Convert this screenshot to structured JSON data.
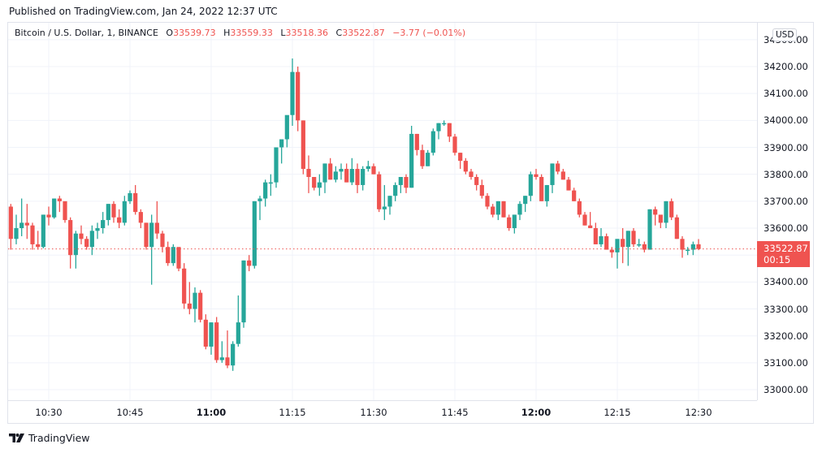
{
  "header": {
    "published": "Published on TradingView.com, Jan 24, 2022 12:37 UTC"
  },
  "legend": {
    "symbol": "Bitcoin / U.S. Dollar, 1, BINANCE",
    "o_key": "O",
    "o_val": "33539.73",
    "h_key": "H",
    "h_val": "33559.33",
    "l_key": "L",
    "l_val": "33518.36",
    "c_key": "C",
    "c_val": "33522.87",
    "change": "−3.77 (−0.01%)"
  },
  "price_axis": {
    "currency": "USD",
    "ticks": [
      "34300.00",
      "34200.00",
      "34100.00",
      "34000.00",
      "33900.00",
      "33800.00",
      "33700.00",
      "33600.00",
      "33500.00",
      "33400.00",
      "33300.00",
      "33200.00",
      "33100.00",
      "33000.00"
    ],
    "last_price": "33522.87",
    "countdown": "00:15"
  },
  "time_axis": {
    "ticks": [
      {
        "label": "10:30",
        "bold": false
      },
      {
        "label": "10:45",
        "bold": false
      },
      {
        "label": "11:00",
        "bold": true
      },
      {
        "label": "11:15",
        "bold": false
      },
      {
        "label": "11:30",
        "bold": false
      },
      {
        "label": "11:45",
        "bold": false
      },
      {
        "label": "12:00",
        "bold": true
      },
      {
        "label": "12:15",
        "bold": false
      },
      {
        "label": "12:30",
        "bold": false
      }
    ]
  },
  "colors": {
    "up": "#26a69a",
    "down": "#ef5350",
    "grid": "#f0f3fa",
    "border": "#e0e3eb"
  },
  "brand": {
    "name": "TradingView"
  },
  "chart_data": {
    "type": "candlestick",
    "title": "Bitcoin / U.S. Dollar, 1, BINANCE",
    "interval": "1m",
    "xlabel": "Time (UTC)",
    "ylabel": "USD",
    "ylim": [
      32950,
      34310
    ],
    "grid": true,
    "last_price": 33522.87,
    "x_ticks": [
      "10:30",
      "10:45",
      "11:00",
      "11:15",
      "11:30",
      "11:45",
      "12:00",
      "12:15",
      "12:30"
    ],
    "y_ticks": [
      33000,
      33100,
      33200,
      33300,
      33400,
      33500,
      33600,
      33700,
      33800,
      33900,
      34000,
      34100,
      34200,
      34300
    ],
    "candles": [
      [
        "10:22",
        33580,
        33730,
        33530,
        33680
      ],
      [
        "10:23",
        33680,
        33690,
        33520,
        33560
      ],
      [
        "10:24",
        33560,
        33650,
        33540,
        33600
      ],
      [
        "10:25",
        33600,
        33710,
        33570,
        33620
      ],
      [
        "10:26",
        33620,
        33690,
        33560,
        33610
      ],
      [
        "10:27",
        33610,
        33620,
        33520,
        33540
      ],
      [
        "10:28",
        33540,
        33590,
        33520,
        33530
      ],
      [
        "10:29",
        33530,
        33650,
        33525,
        33650
      ],
      [
        "10:30",
        33650,
        33680,
        33610,
        33640
      ],
      [
        "10:31",
        33640,
        33710,
        33635,
        33710
      ],
      [
        "10:32",
        33710,
        33720,
        33660,
        33700
      ],
      [
        "10:33",
        33700,
        33670,
        33620,
        33630
      ],
      [
        "10:34",
        33630,
        33640,
        33450,
        33500
      ],
      [
        "10:35",
        33500,
        33590,
        33450,
        33580
      ],
      [
        "10:36",
        33580,
        33610,
        33540,
        33560
      ],
      [
        "10:37",
        33560,
        33570,
        33520,
        33530
      ],
      [
        "10:38",
        33530,
        33610,
        33500,
        33590
      ],
      [
        "10:39",
        33590,
        33620,
        33560,
        33600
      ],
      [
        "10:40",
        33600,
        33660,
        33580,
        33630
      ],
      [
        "10:41",
        33630,
        33690,
        33610,
        33690
      ],
      [
        "10:42",
        33690,
        33700,
        33620,
        33640
      ],
      [
        "10:43",
        33640,
        33670,
        33600,
        33620
      ],
      [
        "10:44",
        33620,
        33720,
        33610,
        33700
      ],
      [
        "10:45",
        33700,
        33740,
        33690,
        33730
      ],
      [
        "10:46",
        33730,
        33760,
        33650,
        33660
      ],
      [
        "10:47",
        33660,
        33670,
        33600,
        33620
      ],
      [
        "10:48",
        33620,
        33620,
        33520,
        33530
      ],
      [
        "10:49",
        33530,
        33650,
        33390,
        33620
      ],
      [
        "10:50",
        33620,
        33700,
        33560,
        33580
      ],
      [
        "10:51",
        33580,
        33590,
        33510,
        33530
      ],
      [
        "10:52",
        33530,
        33550,
        33460,
        33470
      ],
      [
        "10:53",
        33470,
        33540,
        33460,
        33530
      ],
      [
        "10:54",
        33530,
        33520,
        33440,
        33450
      ],
      [
        "10:55",
        33450,
        33470,
        33300,
        33320
      ],
      [
        "10:56",
        33320,
        33400,
        33280,
        33300
      ],
      [
        "10:57",
        33300,
        33380,
        33250,
        33360
      ],
      [
        "10:58",
        33360,
        33370,
        33250,
        33260
      ],
      [
        "10:59",
        33260,
        33280,
        33150,
        33160
      ],
      [
        "11:00",
        33160,
        33250,
        33130,
        33250
      ],
      [
        "11:01",
        33250,
        33270,
        33100,
        33110
      ],
      [
        "11:02",
        33110,
        33180,
        33100,
        33120
      ],
      [
        "11:03",
        33120,
        33220,
        33080,
        33090
      ],
      [
        "11:04",
        33090,
        33180,
        33070,
        33170
      ],
      [
        "11:05",
        33170,
        33350,
        33160,
        33250
      ],
      [
        "11:06",
        33250,
        33480,
        33230,
        33480
      ],
      [
        "11:07",
        33480,
        33500,
        33440,
        33460
      ],
      [
        "11:08",
        33460,
        33700,
        33450,
        33700
      ],
      [
        "11:09",
        33700,
        33720,
        33630,
        33710
      ],
      [
        "11:10",
        33710,
        33780,
        33680,
        33770
      ],
      [
        "11:11",
        33770,
        33800,
        33720,
        33770
      ],
      [
        "11:12",
        33770,
        33880,
        33750,
        33900
      ],
      [
        "11:13",
        33900,
        33920,
        33840,
        33930
      ],
      [
        "11:14",
        33930,
        34000,
        33900,
        34020
      ],
      [
        "11:15",
        34020,
        34230,
        33980,
        34180
      ],
      [
        "11:16",
        34180,
        34200,
        33960,
        34000
      ],
      [
        "11:17",
        34000,
        34000,
        33800,
        33820
      ],
      [
        "11:18",
        33820,
        33870,
        33730,
        33790
      ],
      [
        "11:19",
        33790,
        33780,
        33740,
        33750
      ],
      [
        "11:20",
        33750,
        33800,
        33720,
        33770
      ],
      [
        "11:21",
        33770,
        33840,
        33730,
        33840
      ],
      [
        "11:22",
        33840,
        33860,
        33780,
        33780
      ],
      [
        "11:23",
        33780,
        33830,
        33770,
        33810
      ],
      [
        "11:24",
        33810,
        33840,
        33780,
        33820
      ],
      [
        "11:25",
        33820,
        33840,
        33770,
        33770
      ],
      [
        "11:26",
        33770,
        33860,
        33760,
        33820
      ],
      [
        "11:27",
        33820,
        33840,
        33730,
        33760
      ],
      [
        "11:28",
        33760,
        33830,
        33740,
        33820
      ],
      [
        "11:29",
        33820,
        33850,
        33810,
        33830
      ],
      [
        "11:30",
        33830,
        33840,
        33800,
        33800
      ],
      [
        "11:31",
        33800,
        33810,
        33660,
        33670
      ],
      [
        "11:32",
        33670,
        33760,
        33630,
        33680
      ],
      [
        "11:33",
        33680,
        33720,
        33650,
        33720
      ],
      [
        "11:34",
        33720,
        33770,
        33700,
        33760
      ],
      [
        "11:35",
        33760,
        33790,
        33730,
        33790
      ],
      [
        "11:36",
        33790,
        33800,
        33730,
        33750
      ],
      [
        "11:37",
        33750,
        33980,
        33750,
        33950
      ],
      [
        "11:38",
        33950,
        33950,
        33870,
        33890
      ],
      [
        "11:39",
        33890,
        33910,
        33820,
        33830
      ],
      [
        "11:40",
        33830,
        33890,
        33830,
        33880
      ],
      [
        "11:41",
        33880,
        33970,
        33870,
        33960
      ],
      [
        "11:42",
        33960,
        33990,
        33930,
        33990
      ],
      [
        "11:43",
        33990,
        34000,
        33980,
        33990
      ],
      [
        "11:44",
        33990,
        33990,
        33920,
        33940
      ],
      [
        "11:45",
        33940,
        33950,
        33870,
        33880
      ],
      [
        "11:46",
        33880,
        33880,
        33820,
        33850
      ],
      [
        "11:47",
        33850,
        33860,
        33800,
        33810
      ],
      [
        "11:48",
        33810,
        33820,
        33780,
        33790
      ],
      [
        "11:49",
        33790,
        33800,
        33740,
        33760
      ],
      [
        "11:50",
        33760,
        33780,
        33710,
        33720
      ],
      [
        "11:51",
        33720,
        33730,
        33670,
        33680
      ],
      [
        "11:52",
        33680,
        33690,
        33640,
        33650
      ],
      [
        "11:53",
        33650,
        33700,
        33630,
        33700
      ],
      [
        "11:54",
        33700,
        33700,
        33640,
        33640
      ],
      [
        "11:55",
        33640,
        33650,
        33590,
        33600
      ],
      [
        "11:56",
        33600,
        33650,
        33580,
        33650
      ],
      [
        "11:57",
        33650,
        33700,
        33630,
        33690
      ],
      [
        "11:58",
        33690,
        33720,
        33660,
        33720
      ],
      [
        "11:59",
        33720,
        33810,
        33700,
        33800
      ],
      [
        "12:00",
        33800,
        33820,
        33780,
        33790
      ],
      [
        "12:01",
        33790,
        33800,
        33700,
        33700
      ],
      [
        "12:02",
        33700,
        33760,
        33680,
        33760
      ],
      [
        "12:03",
        33760,
        33840,
        33730,
        33840
      ],
      [
        "12:04",
        33840,
        33850,
        33800,
        33810
      ],
      [
        "12:05",
        33810,
        33820,
        33780,
        33780
      ],
      [
        "12:06",
        33780,
        33790,
        33740,
        33740
      ],
      [
        "12:07",
        33740,
        33750,
        33700,
        33700
      ],
      [
        "12:08",
        33700,
        33710,
        33640,
        33650
      ],
      [
        "12:09",
        33650,
        33660,
        33610,
        33610
      ],
      [
        "12:10",
        33610,
        33660,
        33600,
        33600
      ],
      [
        "12:11",
        33600,
        33620,
        33540,
        33540
      ],
      [
        "12:12",
        33540,
        33600,
        33530,
        33570
      ],
      [
        "12:13",
        33570,
        33580,
        33520,
        33520
      ],
      [
        "12:14",
        33520,
        33530,
        33490,
        33510
      ],
      [
        "12:15",
        33510,
        33550,
        33450,
        33560
      ],
      [
        "12:16",
        33560,
        33600,
        33470,
        33530
      ],
      [
        "12:17",
        33530,
        33590,
        33460,
        33590
      ],
      [
        "12:18",
        33590,
        33600,
        33530,
        33540
      ],
      [
        "12:19",
        33540,
        33560,
        33530,
        33540
      ],
      [
        "12:20",
        33540,
        33550,
        33510,
        33520
      ],
      [
        "12:21",
        33520,
        33670,
        33520,
        33670
      ],
      [
        "12:22",
        33670,
        33680,
        33610,
        33650
      ],
      [
        "12:23",
        33650,
        33640,
        33600,
        33620
      ],
      [
        "12:24",
        33620,
        33700,
        33600,
        33700
      ],
      [
        "12:25",
        33700,
        33710,
        33630,
        33640
      ],
      [
        "12:26",
        33640,
        33650,
        33560,
        33560
      ],
      [
        "12:27",
        33560,
        33570,
        33490,
        33520
      ],
      [
        "12:28",
        33520,
        33530,
        33500,
        33520
      ],
      [
        "12:29",
        33520,
        33550,
        33500,
        33540
      ],
      [
        "12:30",
        33540,
        33559.33,
        33518.36,
        33522.87
      ]
    ]
  }
}
